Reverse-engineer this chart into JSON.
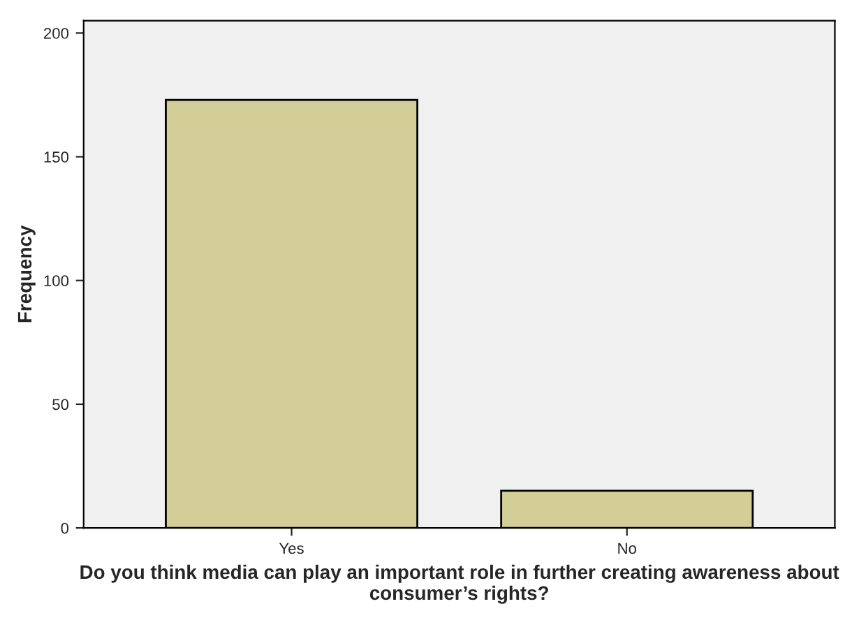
{
  "chart_data": {
    "type": "bar",
    "xlabel": "Do you think media can play an important role in further creating awareness about consumer’s rights?",
    "ylabel": "Frequency",
    "categories": [
      "Yes",
      "No"
    ],
    "values": [
      173,
      15
    ],
    "color": "#d3ce97",
    "ylim": [
      0,
      205
    ],
    "yticks": [
      0,
      50,
      100,
      150,
      200
    ],
    "grid": false,
    "legend": false
  }
}
